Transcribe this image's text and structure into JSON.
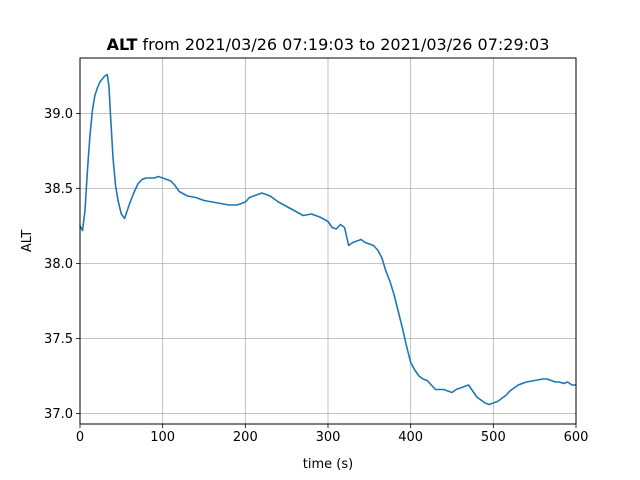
{
  "chart_data": {
    "type": "line",
    "title_bold": "ALT",
    "title_rest": " from 2021/03/26 07:19:03 to 2021/03/26 07:29:03",
    "xlabel": "time (s)",
    "ylabel": "ALT",
    "xlim": [
      0,
      600
    ],
    "ylim": [
      36.93,
      39.37
    ],
    "xticks": [
      0,
      100,
      200,
      300,
      400,
      500,
      600
    ],
    "xtick_labels": [
      "0",
      "100",
      "200",
      "300",
      "400",
      "500",
      "600"
    ],
    "yticks": [
      37.0,
      37.5,
      38.0,
      38.5,
      39.0
    ],
    "ytick_labels": [
      "37.0",
      "37.5",
      "38.0",
      "38.5",
      "39.0"
    ],
    "grid": true,
    "line_color": "#1f77b4",
    "series": [
      {
        "x": [
          0,
          3,
          6,
          9,
          12,
          15,
          18,
          21,
          24,
          27,
          30,
          33,
          35,
          37,
          40,
          43,
          46,
          50,
          54,
          57,
          60,
          65,
          70,
          75,
          80,
          85,
          90,
          95,
          100,
          105,
          110,
          115,
          120,
          130,
          140,
          150,
          160,
          170,
          180,
          190,
          200,
          205,
          210,
          215,
          220,
          225,
          230,
          240,
          250,
          260,
          270,
          280,
          290,
          300,
          305,
          310,
          315,
          320,
          325,
          330,
          335,
          340,
          345,
          350,
          355,
          360,
          365,
          370,
          375,
          380,
          385,
          390,
          395,
          400,
          405,
          410,
          415,
          420,
          425,
          430,
          435,
          440,
          445,
          450,
          455,
          460,
          465,
          470,
          475,
          480,
          485,
          490,
          495,
          500,
          505,
          510,
          515,
          520,
          525,
          530,
          540,
          550,
          560,
          565,
          570,
          575,
          580,
          585,
          590,
          595,
          600
        ],
        "y": [
          38.25,
          38.22,
          38.35,
          38.62,
          38.85,
          39.02,
          39.12,
          39.17,
          39.21,
          39.23,
          39.25,
          39.26,
          39.18,
          38.98,
          38.7,
          38.52,
          38.42,
          38.33,
          38.3,
          38.35,
          38.4,
          38.47,
          38.53,
          38.56,
          38.57,
          38.57,
          38.57,
          38.58,
          38.57,
          38.56,
          38.55,
          38.52,
          38.48,
          38.45,
          38.44,
          38.42,
          38.41,
          38.4,
          38.39,
          38.39,
          38.41,
          38.44,
          38.45,
          38.46,
          38.47,
          38.46,
          38.45,
          38.41,
          38.38,
          38.35,
          38.32,
          38.33,
          38.31,
          38.28,
          38.24,
          38.23,
          38.26,
          38.24,
          38.12,
          38.14,
          38.15,
          38.16,
          38.14,
          38.13,
          38.12,
          38.09,
          38.04,
          37.95,
          37.88,
          37.79,
          37.68,
          37.57,
          37.45,
          37.34,
          37.29,
          37.25,
          37.23,
          37.22,
          37.19,
          37.16,
          37.16,
          37.16,
          37.15,
          37.14,
          37.16,
          37.17,
          37.18,
          37.19,
          37.15,
          37.11,
          37.09,
          37.07,
          37.06,
          37.07,
          37.08,
          37.1,
          37.12,
          37.15,
          37.17,
          37.19,
          37.21,
          37.22,
          37.23,
          37.23,
          37.22,
          37.21,
          37.21,
          37.2,
          37.21,
          37.19,
          37.19
        ]
      }
    ]
  }
}
